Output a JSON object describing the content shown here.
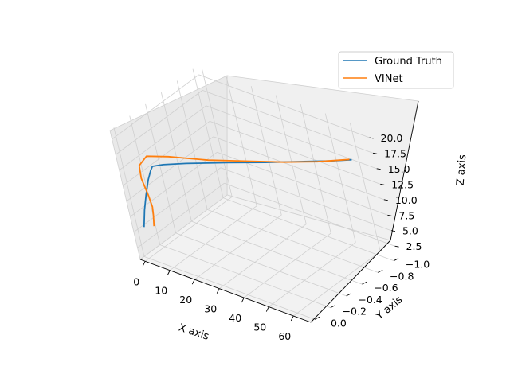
{
  "chart_data": {
    "type": "line",
    "projection": "3d",
    "title": "",
    "xlabel": "X axis",
    "ylabel": "Y axis",
    "zlabel": "Z axis",
    "xlim": [
      -2,
      67
    ],
    "ylim": [
      -1.05,
      0.05
    ],
    "zlim": [
      0.6,
      21.4
    ],
    "grid": true,
    "legend_position": "top-right",
    "x_ticks": [
      "0",
      "10",
      "20",
      "30",
      "40",
      "50",
      "60"
    ],
    "y_ticks": [
      "−1.0",
      "−0.8",
      "−0.6",
      "−0.4",
      "−0.2",
      "0.0"
    ],
    "z_ticks": [
      "2.5",
      "5.0",
      "7.5",
      "10.0",
      "12.5",
      "15.0",
      "17.5",
      "20.0"
    ],
    "series": [
      {
        "name": "Ground Truth",
        "color": "#1f77b4",
        "points": [
          {
            "x": 1.0,
            "y": 0.0,
            "z": 5.8
          },
          {
            "x": 2.6,
            "y": -0.01,
            "z": 8.7
          },
          {
            "x": 4.5,
            "y": -0.02,
            "z": 11.4
          },
          {
            "x": 6.6,
            "y": -0.03,
            "z": 14.0
          },
          {
            "x": 8.2,
            "y": -0.04,
            "z": 15.6
          },
          {
            "x": 9.0,
            "y": -0.05,
            "z": 16.3
          },
          {
            "x": 11.0,
            "y": -0.12,
            "z": 16.2
          },
          {
            "x": 16.0,
            "y": -0.25,
            "z": 15.9
          },
          {
            "x": 26.0,
            "y": -0.45,
            "z": 15.6
          },
          {
            "x": 36.0,
            "y": -0.62,
            "z": 15.5
          },
          {
            "x": 46.0,
            "y": -0.77,
            "z": 15.7
          },
          {
            "x": 55.0,
            "y": -0.88,
            "z": 16.1
          },
          {
            "x": 61.0,
            "y": -0.95,
            "z": 16.5
          }
        ]
      },
      {
        "name": "VINet",
        "color": "#ff7f0e",
        "points": [
          {
            "x": 5.5,
            "y": 0.0,
            "z": 6.6
          },
          {
            "x": 6.0,
            "y": -0.01,
            "z": 8.4
          },
          {
            "x": 6.0,
            "y": -0.02,
            "z": 9.6
          },
          {
            "x": 5.0,
            "y": -0.03,
            "z": 11.2
          },
          {
            "x": 3.2,
            "y": -0.04,
            "z": 13.6
          },
          {
            "x": 2.8,
            "y": -0.06,
            "z": 15.4
          },
          {
            "x": 4.5,
            "y": -0.12,
            "z": 16.6
          },
          {
            "x": 10.0,
            "y": -0.22,
            "z": 16.4
          },
          {
            "x": 20.0,
            "y": -0.4,
            "z": 15.6
          },
          {
            "x": 30.0,
            "y": -0.58,
            "z": 15.2
          },
          {
            "x": 40.0,
            "y": -0.72,
            "z": 15.2
          },
          {
            "x": 50.0,
            "y": -0.84,
            "z": 15.6
          },
          {
            "x": 60.0,
            "y": -0.95,
            "z": 16.4
          }
        ]
      }
    ]
  }
}
